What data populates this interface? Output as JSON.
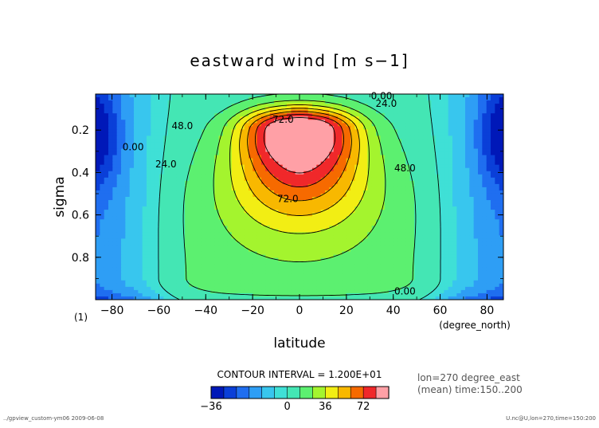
{
  "chart_data": {
    "type": "heatmap",
    "title": "eastward wind [m s−1]",
    "xlabel": "latitude",
    "ylabel": "sigma",
    "x_unit": "(degree_north)",
    "y_unit": "(1)",
    "xlim": [
      -87,
      87
    ],
    "ylim": [
      1.0,
      0.03
    ],
    "x_ticks": [
      -80,
      -60,
      -40,
      -20,
      0,
      20,
      40,
      60,
      80
    ],
    "y_ticks": [
      0.2,
      0.4,
      0.6,
      0.8
    ],
    "x_tick_labels": [
      "−80",
      "−60",
      "−40",
      "−20",
      "0",
      "20",
      "40",
      "60",
      "80"
    ],
    "y_tick_labels": [
      "0.2",
      "0.4",
      "0.6",
      "0.8"
    ],
    "contour_interval_text": "CONTOUR INTERVAL = 1.200E+01",
    "contour_interval": 12,
    "info_line1": "lon=270 degree_east",
    "info_line2": "(mean) time:150..200",
    "footer_left": "../gpview_custom-ym06  2009-06-08",
    "footer_right": "U.nc@U,lon=270,time=150:200",
    "colorbar": {
      "levels": [
        -36,
        -30,
        -24,
        -18,
        -12,
        -6,
        0,
        12,
        24,
        36,
        48,
        60,
        72,
        84
      ],
      "tick_values": [
        -36,
        0,
        36,
        72
      ],
      "tick_labels": [
        "−36",
        "0",
        "36",
        "72"
      ],
      "colors": [
        "#0018b8",
        "#0a3fd8",
        "#1f6ef0",
        "#2e9ef5",
        "#38c6ee",
        "#3fe0d6",
        "#44e6b4",
        "#5cf070",
        "#a4f42e",
        "#f2ee14",
        "#f8b800",
        "#f66a00",
        "#f0282a",
        "#ffa0a6"
      ]
    },
    "contour_labels": [
      {
        "text": "0.00",
        "lat": 35,
        "sigma": 0.04
      },
      {
        "text": "24.0",
        "lat": 37,
        "sigma": 0.075
      },
      {
        "text": "72.0",
        "lat": -7,
        "sigma": 0.15
      },
      {
        "text": "48.0",
        "lat": -50,
        "sigma": 0.18
      },
      {
        "text": "0.00",
        "lat": -71,
        "sigma": 0.28
      },
      {
        "text": "24.0",
        "lat": -57,
        "sigma": 0.36
      },
      {
        "text": "48.0",
        "lat": 45,
        "sigma": 0.38
      },
      {
        "text": "72.0",
        "lat": -5,
        "sigma": 0.525
      },
      {
        "text": "0.00",
        "lat": 45,
        "sigma": 0.96
      }
    ],
    "field": {
      "jet_center_lat": 0,
      "jet_center_sigma": 0.19,
      "jet_max": 96,
      "twin_core_lats": [
        -17,
        17
      ],
      "background_min": -8,
      "polar_min": -36,
      "polar_lat": 87,
      "polar_sigma": 0.22
    }
  }
}
